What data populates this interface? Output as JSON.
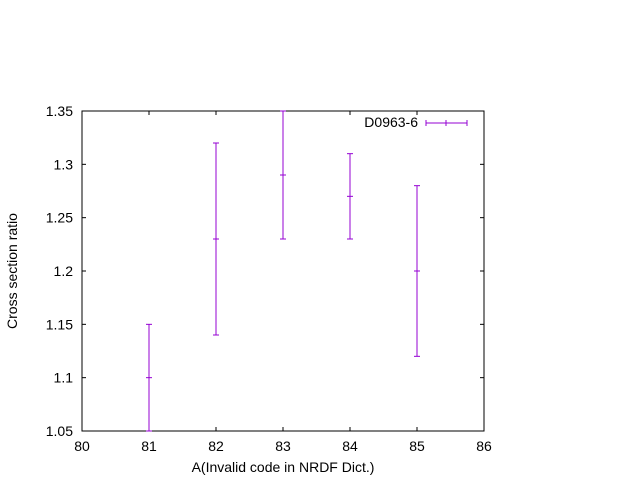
{
  "chart_data": {
    "type": "scatter",
    "title": "",
    "xlabel": "A(Invalid code in NRDF Dict.)",
    "ylabel": "Cross section ratio",
    "xlim": [
      80,
      86
    ],
    "ylim": [
      1.05,
      1.35
    ],
    "xticks": [
      "80",
      "81",
      "82",
      "83",
      "84",
      "85",
      "86"
    ],
    "yticks": [
      "1.05",
      "1.1",
      "1.15",
      "1.2",
      "1.25",
      "1.3",
      "1.35"
    ],
    "grid": false,
    "legend_position": "top-right",
    "series": [
      {
        "name": "D0963-6",
        "color": "#9400d3",
        "marker": "errorbars",
        "points": [
          {
            "x": 81,
            "y": 1.1,
            "ylow": 1.05,
            "yhigh": 1.15
          },
          {
            "x": 82,
            "y": 1.23,
            "ylow": 1.14,
            "yhigh": 1.32
          },
          {
            "x": 83,
            "y": 1.29,
            "ylow": 1.23,
            "yhigh": 1.35
          },
          {
            "x": 84,
            "y": 1.27,
            "ylow": 1.23,
            "yhigh": 1.31
          },
          {
            "x": 85,
            "y": 1.2,
            "ylow": 1.12,
            "yhigh": 1.28
          }
        ]
      }
    ]
  }
}
